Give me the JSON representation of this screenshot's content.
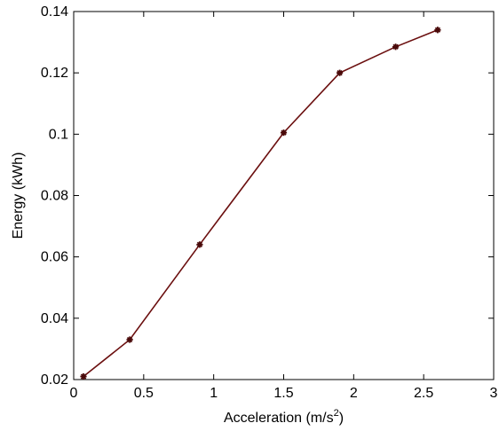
{
  "chart_data": {
    "type": "line",
    "title": "",
    "xlabel_main": "Acceleration (m/s",
    "xlabel_sup": "2",
    "xlabel_close": ")",
    "ylabel": "Energy (kWh)",
    "xlim": [
      0,
      3
    ],
    "ylim": [
      0.02,
      0.14
    ],
    "xticks": [
      0,
      0.5,
      1,
      1.5,
      2,
      2.5,
      3
    ],
    "xtick_labels": [
      "0",
      "0.5",
      "1",
      "1.5",
      "2",
      "2.5",
      "3"
    ],
    "yticks": [
      0.02,
      0.04,
      0.06,
      0.08,
      0.1,
      0.12,
      0.14
    ],
    "ytick_labels": [
      "0.02",
      "0.04",
      "0.06",
      "0.08",
      "0.1",
      "0.12",
      "0.14"
    ],
    "grid": false,
    "legend": "none",
    "line_color": "#6b0f0f",
    "marker_color": "#4a0a0a",
    "series": [
      {
        "x": [
          0.07,
          0.4,
          0.9,
          1.5,
          1.9,
          2.3,
          2.6
        ],
        "y": [
          0.021,
          0.033,
          0.064,
          0.1005,
          0.12,
          0.1285,
          0.134
        ]
      }
    ]
  }
}
